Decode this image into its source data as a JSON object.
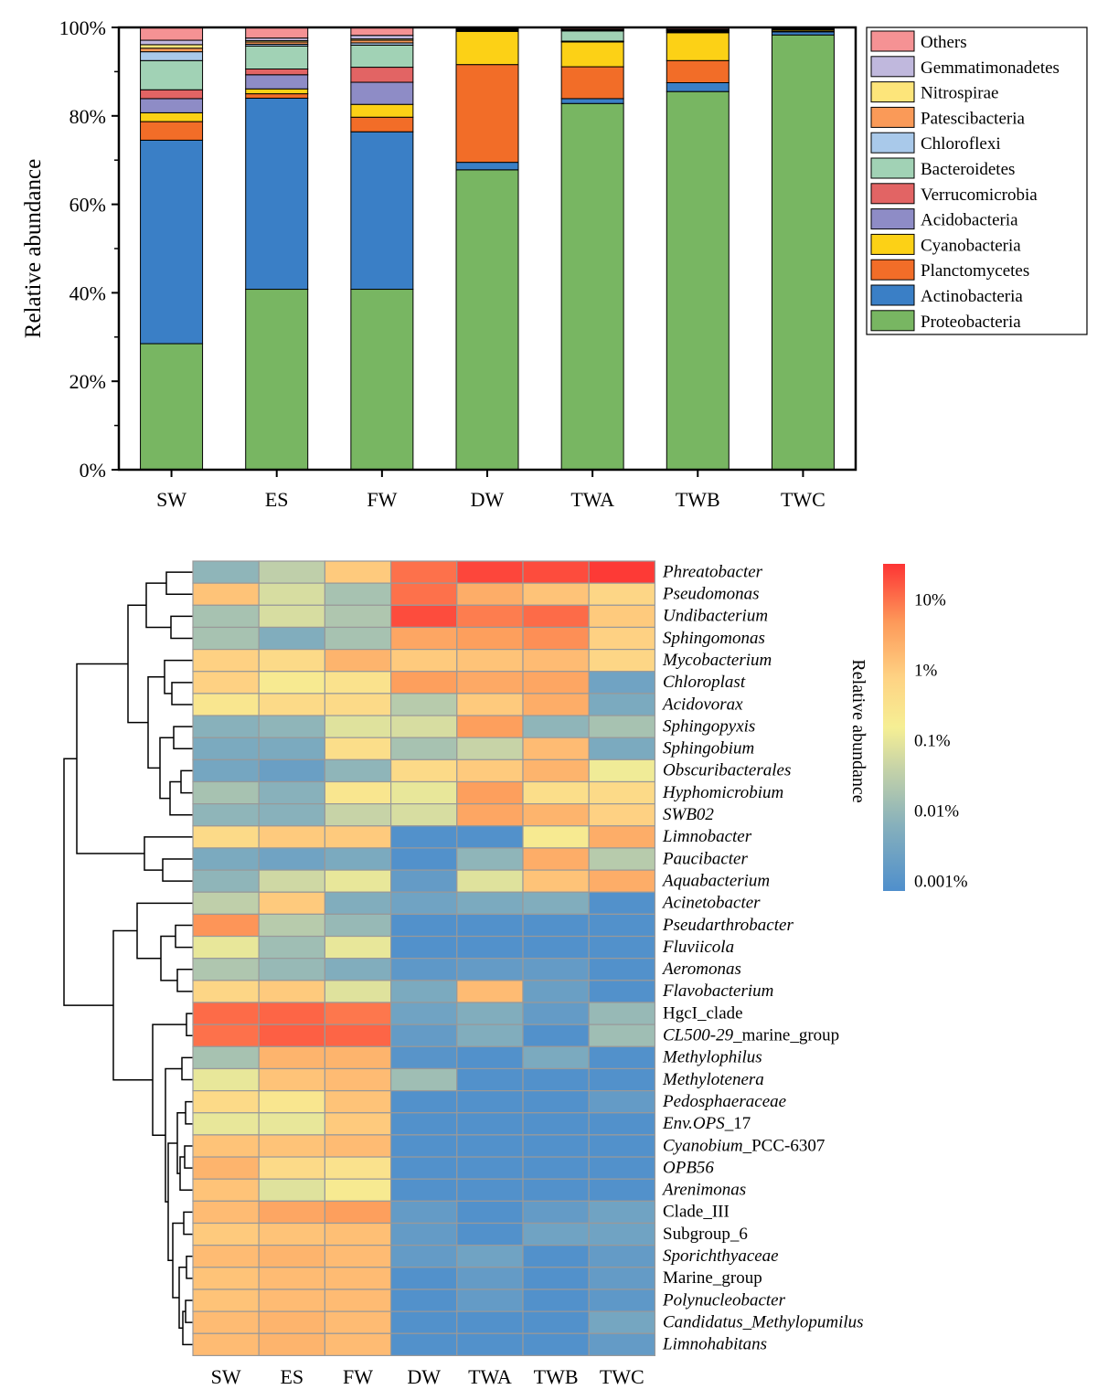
{
  "chart_data": [
    {
      "type": "bar",
      "subtype": "stacked-percent",
      "title": "",
      "xlabel": "",
      "ylabel": "Relative abundance",
      "ylim": [
        0,
        100
      ],
      "ytick_labels": [
        "0%",
        "20%",
        "40%",
        "60%",
        "80%",
        "100%"
      ],
      "legend_position": "top-right",
      "categories": [
        "SW",
        "ES",
        "FW",
        "DW",
        "TWA",
        "TWB",
        "TWC"
      ],
      "series": [
        {
          "name": "Proteobacteria",
          "color": "#78b662",
          "values": [
            28.5,
            40.8,
            40.8,
            67.8,
            82.8,
            85.5,
            98.3
          ]
        },
        {
          "name": "Actinobacteria",
          "color": "#3a7fc6",
          "values": [
            46.0,
            43.2,
            35.6,
            1.7,
            1.1,
            2.0,
            0.7
          ]
        },
        {
          "name": "Planctomycetes",
          "color": "#f26d28",
          "values": [
            4.2,
            1.0,
            3.3,
            22.1,
            7.2,
            5.0,
            0.1
          ]
        },
        {
          "name": "Cyanobacteria",
          "color": "#fcd116",
          "values": [
            2.0,
            1.1,
            2.9,
            7.5,
            5.6,
            6.3,
            0.3
          ]
        },
        {
          "name": "Acidobacteria",
          "color": "#8e8cc6",
          "values": [
            3.2,
            3.2,
            5.0,
            0.0,
            0.1,
            0.1,
            0.0
          ]
        },
        {
          "name": "Verrucomicrobia",
          "color": "#e26464",
          "values": [
            2.0,
            1.3,
            3.4,
            0.1,
            0.1,
            0.1,
            0.0
          ]
        },
        {
          "name": "Bacteroidetes",
          "color": "#a1d2b5",
          "values": [
            6.6,
            5.2,
            5.0,
            0.2,
            2.3,
            0.2,
            0.2
          ]
        },
        {
          "name": "Chloroflexi",
          "color": "#a9c9ea",
          "values": [
            2.0,
            0.4,
            0.5,
            0.1,
            0.1,
            0.1,
            0.1
          ]
        },
        {
          "name": "Patescibacteria",
          "color": "#fa9a58",
          "values": [
            0.8,
            0.5,
            0.6,
            0.1,
            0.1,
            0.1,
            0.1
          ]
        },
        {
          "name": "Nitrospirae",
          "color": "#fde57a",
          "values": [
            0.8,
            0.3,
            0.3,
            0.1,
            0.1,
            0.1,
            0.0
          ]
        },
        {
          "name": "Gemmatimonadetes",
          "color": "#c0b8dd",
          "values": [
            1.0,
            0.6,
            0.8,
            0.1,
            0.1,
            0.1,
            0.0
          ]
        },
        {
          "name": "Others",
          "color": "#f59294",
          "values": [
            2.9,
            2.4,
            1.8,
            0.1,
            0.3,
            0.4,
            0.2
          ]
        }
      ]
    },
    {
      "type": "heatmap",
      "title": "",
      "columns": [
        "SW",
        "ES",
        "FW",
        "DW",
        "TWA",
        "TWB",
        "TWC"
      ],
      "colorbar_title": "Relative abundance",
      "colorbar_tick_labels": [
        "0.001%",
        "0.01%",
        "0.1%",
        "1%",
        "10%"
      ],
      "colorbar_range_log10_percent": [
        -3.15,
        1.5
      ],
      "value_units": "log10 of relative abundance (%)",
      "rows": [
        {
          "label": "Phreatobacter",
          "italic": true,
          "values": [
            -2.1,
            -1.5,
            0.0,
            1.0,
            1.35,
            1.3,
            1.45
          ]
        },
        {
          "label": "Pseudomonas",
          "italic": true,
          "values": [
            0.1,
            -1.2,
            -1.8,
            1.0,
            0.4,
            0.1,
            -0.2
          ]
        },
        {
          "label": "Undibacterium",
          "italic": true,
          "values": [
            -1.8,
            -1.2,
            -1.7,
            1.3,
            0.9,
            1.05,
            0.0
          ]
        },
        {
          "label": "Sphingomonas",
          "italic": true,
          "values": [
            -1.8,
            -2.3,
            -1.8,
            0.5,
            0.6,
            0.75,
            -0.1
          ]
        },
        {
          "label": "Mycobacterium",
          "italic": true,
          "values": [
            -0.1,
            -0.3,
            0.3,
            0.0,
            0.1,
            0.2,
            -0.2
          ]
        },
        {
          "label": "Chloroplast",
          "italic": true,
          "values": [
            -0.1,
            -0.7,
            -0.5,
            0.6,
            0.45,
            0.5,
            -2.6
          ]
        },
        {
          "label": "Acidovorax",
          "italic": true,
          "values": [
            -0.6,
            -0.3,
            -0.3,
            -1.6,
            0.0,
            0.4,
            -2.4
          ]
        },
        {
          "label": "Sphingopyxis",
          "italic": true,
          "values": [
            -2.2,
            -2.1,
            -1.1,
            -1.2,
            0.6,
            -2.1,
            -1.8
          ]
        },
        {
          "label": "Sphingobium",
          "italic": true,
          "values": [
            -2.4,
            -2.4,
            -0.4,
            -1.8,
            -1.4,
            0.2,
            -2.4
          ]
        },
        {
          "label": "Obscuribacterales",
          "italic": true,
          "values": [
            -2.5,
            -2.7,
            -2.1,
            -0.3,
            0.0,
            0.3,
            -0.9
          ]
        },
        {
          "label": "Hyphomicrobium",
          "italic": true,
          "values": [
            -1.8,
            -2.2,
            -0.6,
            -1.0,
            0.6,
            -0.4,
            -0.3
          ]
        },
        {
          "label": "SWB02",
          "italic": true,
          "values": [
            -2.1,
            -2.2,
            -1.4,
            -1.2,
            0.5,
            0.3,
            -0.1
          ]
        },
        {
          "label": "Limnobacter",
          "italic": true,
          "values": [
            -0.3,
            0.0,
            0.0,
            -3.1,
            -3.1,
            -0.7,
            0.4
          ]
        },
        {
          "label": "Paucibacter",
          "italic": true,
          "values": [
            -2.4,
            -2.6,
            -2.4,
            -3.1,
            -2.1,
            0.4,
            -1.6
          ]
        },
        {
          "label": "Aquabacterium",
          "italic": true,
          "values": [
            -2.1,
            -1.3,
            -1.0,
            -2.8,
            -1.1,
            0.1,
            0.4
          ]
        },
        {
          "label": "Acinetobacter",
          "italic": true,
          "values": [
            -1.5,
            0.0,
            -2.3,
            -2.6,
            -2.4,
            -2.3,
            -3.1
          ]
        },
        {
          "label": "Pseudarthrobacter",
          "italic": true,
          "values": [
            0.7,
            -1.6,
            -2.0,
            -3.1,
            -3.1,
            -3.1,
            -3.1
          ]
        },
        {
          "label": "Fluviicola",
          "italic": true,
          "values": [
            -1.0,
            -1.9,
            -1.0,
            -3.1,
            -3.1,
            -3.1,
            -3.1
          ]
        },
        {
          "label": "Aeromonas",
          "italic": true,
          "values": [
            -1.7,
            -2.0,
            -2.3,
            -2.9,
            -2.8,
            -2.8,
            -3.1
          ]
        },
        {
          "label": "Flavobacterium",
          "italic": true,
          "values": [
            -0.2,
            0.0,
            -1.1,
            -2.4,
            0.2,
            -2.7,
            -3.1
          ]
        },
        {
          "label": "HgcI_clade",
          "italic": false,
          "values": [
            1.05,
            1.1,
            0.95,
            -2.6,
            -2.3,
            -2.8,
            -2.0
          ]
        },
        {
          "label": "CL500-29_marine_group",
          "italic_part": "CL500-29",
          "roman_part": "_marine_group",
          "values": [
            1.0,
            1.15,
            1.1,
            -2.8,
            -2.3,
            -3.1,
            -1.9
          ]
        },
        {
          "label": "Methylophilus",
          "italic": true,
          "values": [
            -1.8,
            0.3,
            0.3,
            -3.0,
            -3.1,
            -2.4,
            -3.1
          ]
        },
        {
          "label": "Methylotenera",
          "italic": true,
          "values": [
            -1.0,
            0.1,
            0.2,
            -1.9,
            -3.1,
            -3.1,
            -3.1
          ]
        },
        {
          "label": "Pedosphaeraceae",
          "italic": true,
          "values": [
            -0.3,
            -0.6,
            0.1,
            -3.1,
            -3.1,
            -3.1,
            -2.8
          ]
        },
        {
          "label": "Env.OPS_17",
          "italic_part": "Env.OPS",
          "roman_part": "_17",
          "values": [
            -1.0,
            -1.0,
            0.0,
            -3.1,
            -3.1,
            -3.1,
            -3.1
          ]
        },
        {
          "label": "Cyanobium_PCC-6307",
          "italic_part": "Cyanobium",
          "roman_part": "_PCC-6307",
          "values": [
            0.1,
            0.1,
            0.2,
            -3.1,
            -3.1,
            -3.1,
            -3.1
          ]
        },
        {
          "label": "OPB56",
          "italic": true,
          "values": [
            0.3,
            -0.3,
            -0.5,
            -3.1,
            -3.1,
            -3.1,
            -3.1
          ]
        },
        {
          "label": "Arenimonas",
          "italic": true,
          "values": [
            0.1,
            -1.1,
            -0.7,
            -3.1,
            -3.1,
            -3.1,
            -3.1
          ]
        },
        {
          "label": "Clade_III",
          "italic": false,
          "values": [
            0.2,
            0.5,
            0.6,
            -2.8,
            -3.1,
            -2.8,
            -2.6
          ]
        },
        {
          "label": "Subgroup_6",
          "italic": false,
          "values": [
            0.0,
            0.1,
            0.15,
            -2.8,
            -3.1,
            -2.6,
            -2.6
          ]
        },
        {
          "label": "Sporichthyaceae",
          "italic": true,
          "values": [
            0.2,
            0.3,
            0.2,
            -2.8,
            -2.6,
            -3.1,
            -2.8
          ]
        },
        {
          "label": "Marine_group",
          "italic": false,
          "values": [
            0.1,
            0.2,
            0.2,
            -3.1,
            -2.8,
            -3.1,
            -2.8
          ]
        },
        {
          "label": "Polynucleobacter",
          "italic": true,
          "values": [
            0.1,
            0.2,
            0.2,
            -3.1,
            -2.8,
            -3.1,
            -2.9
          ]
        },
        {
          "label": "Candidatus_Methylopumilus",
          "italic": true,
          "values": [
            0.2,
            0.3,
            0.2,
            -3.1,
            -3.1,
            -3.1,
            -2.5
          ]
        },
        {
          "label": "Limnohabitans",
          "italic": true,
          "values": [
            0.2,
            0.3,
            0.2,
            -3.1,
            -3.1,
            -3.1,
            -2.8
          ]
        }
      ],
      "dendrogram_side": "left"
    }
  ]
}
